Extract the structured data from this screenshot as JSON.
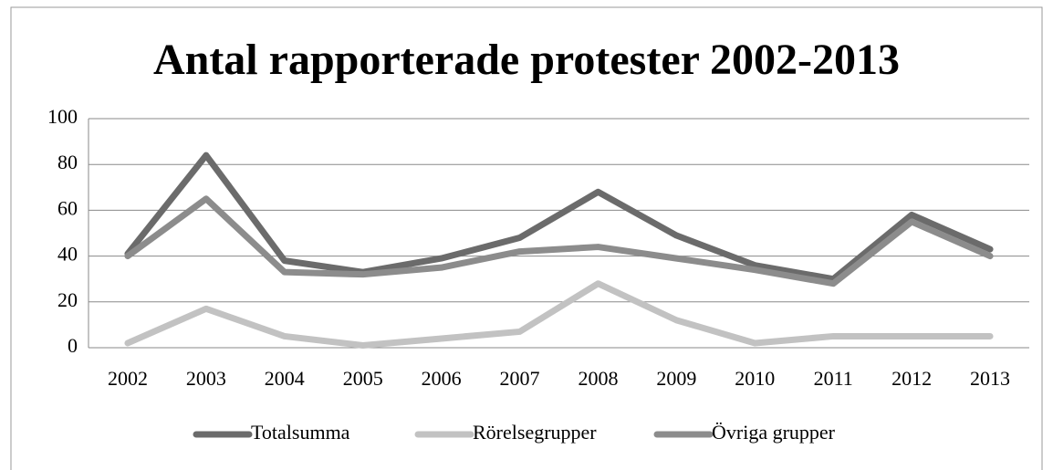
{
  "chart_data": {
    "type": "line",
    "title": "Antal rapporterade protester 2002-2013",
    "categories": [
      "2002",
      "2003",
      "2004",
      "2005",
      "2006",
      "2007",
      "2008",
      "2009",
      "2010",
      "2011",
      "2012",
      "2013"
    ],
    "series": [
      {
        "name": "Totalsumma",
        "color": "#6b6b6b",
        "values": [
          41,
          84,
          38,
          33,
          39,
          48,
          68,
          49,
          36,
          30,
          58,
          43
        ]
      },
      {
        "name": "Rörelsegrupper",
        "color": "#c2c2c2",
        "values": [
          2,
          17,
          5,
          1,
          4,
          7,
          28,
          12,
          2,
          5,
          5,
          5
        ]
      },
      {
        "name": "Övriga grupper",
        "color": "#8c8c8c",
        "values": [
          40,
          65,
          33,
          32,
          35,
          42,
          44,
          39,
          34,
          28,
          55,
          40
        ]
      }
    ],
    "ylim": [
      0,
      100
    ],
    "yticks": [
      0,
      20,
      40,
      60,
      80,
      100
    ],
    "grid": true,
    "legend": "bottom"
  }
}
